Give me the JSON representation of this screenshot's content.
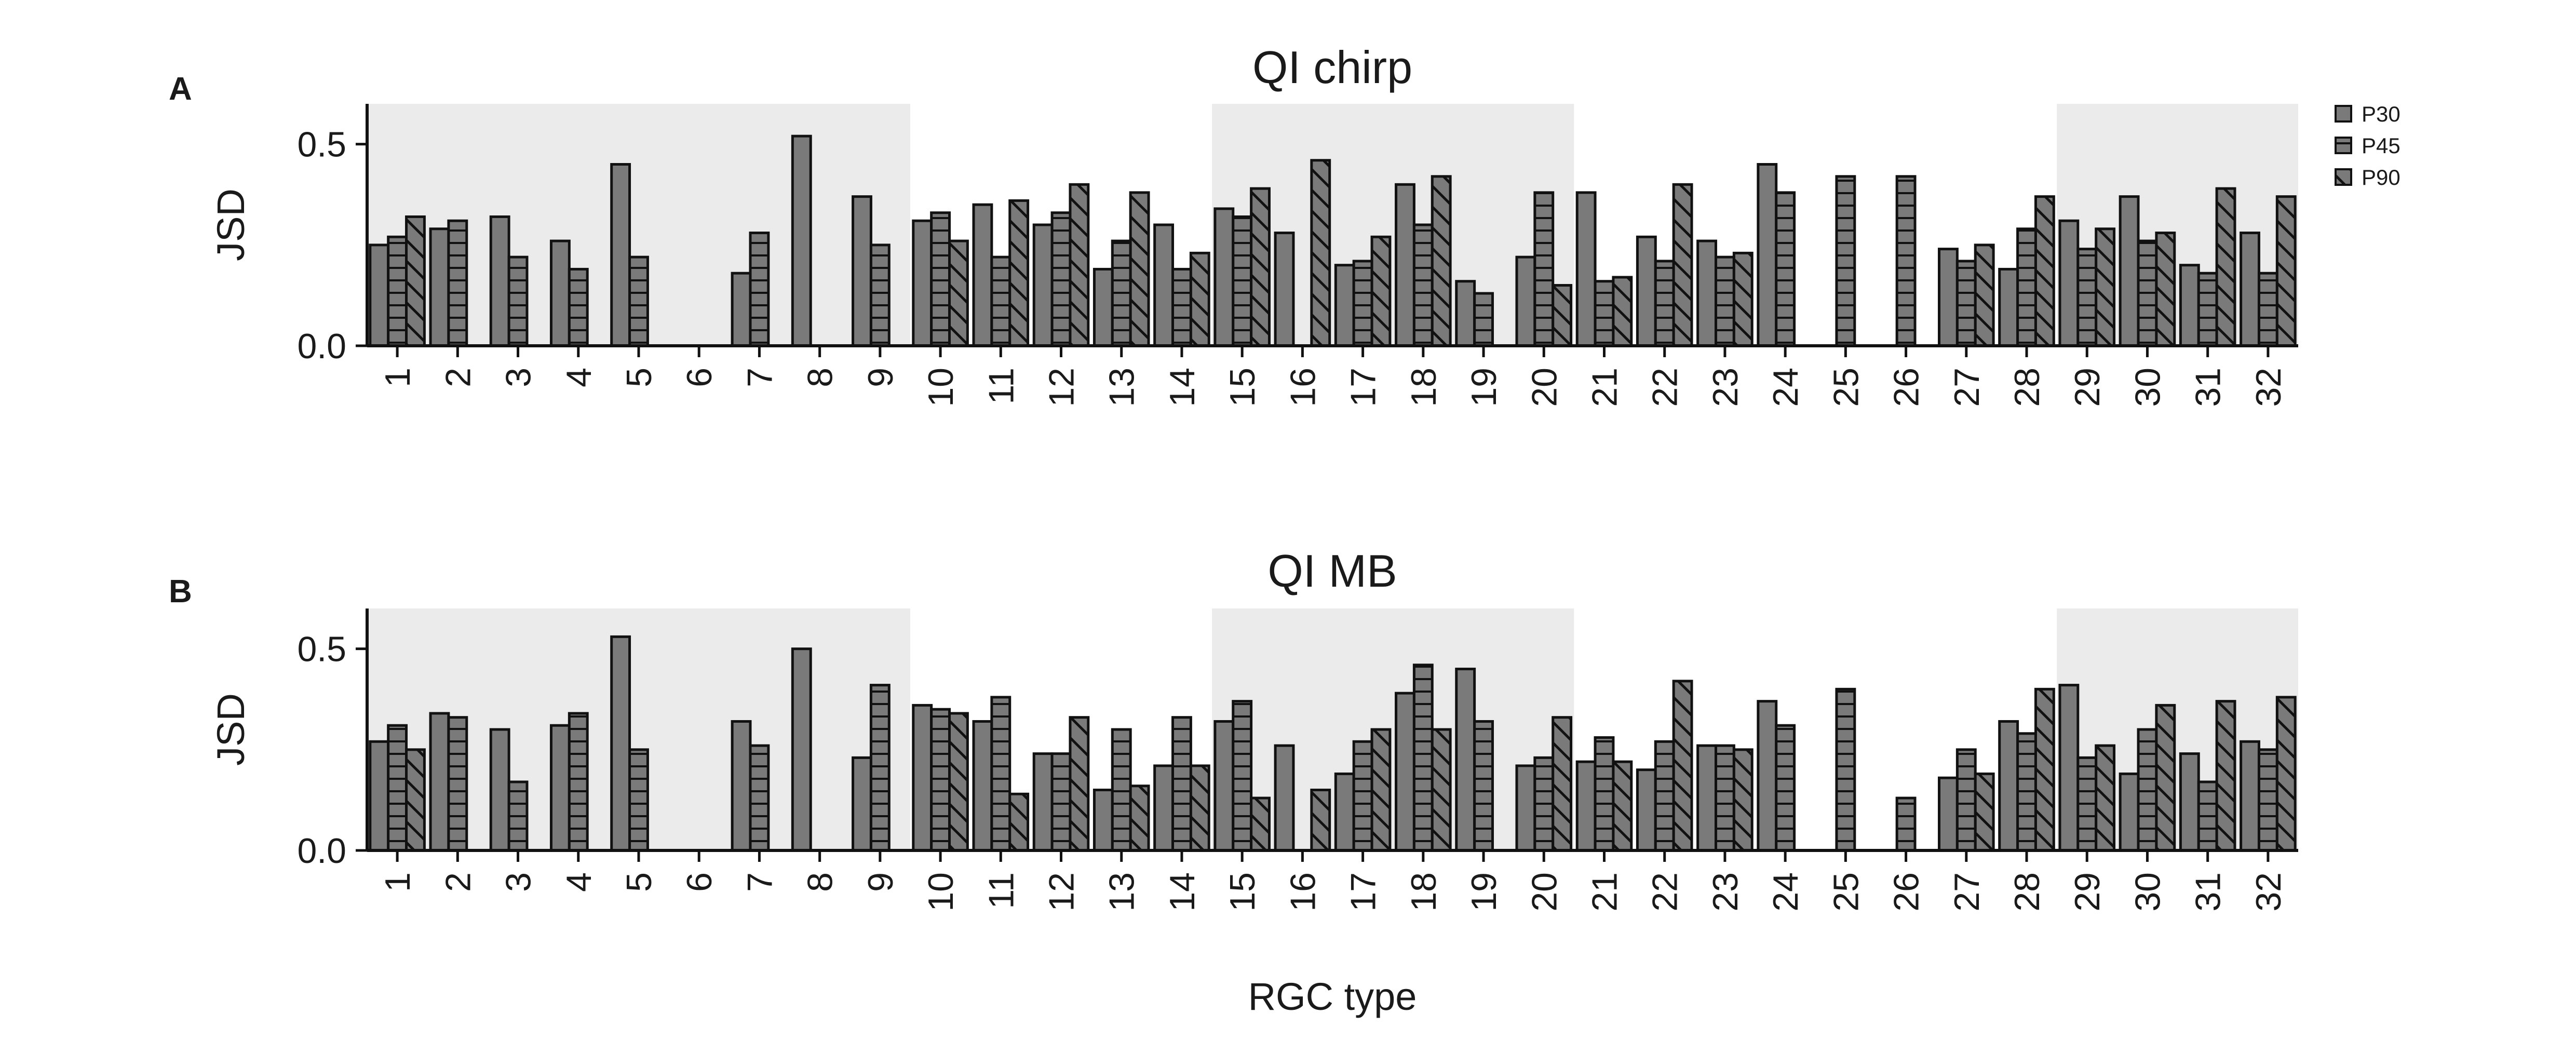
{
  "figure": {
    "xlabel": "RGC type"
  },
  "legend": {
    "entries": [
      {
        "name": "P30",
        "pattern": "none"
      },
      {
        "name": "P45",
        "pattern": "horizontal"
      },
      {
        "name": "P90",
        "pattern": "diagonal"
      }
    ],
    "placement": "top-right"
  },
  "colors": {
    "bar_fill": "#7a7a7a",
    "bar_edge": "#111111",
    "shade": "#ebebeb",
    "axis": "#111111"
  },
  "chart_data": [
    {
      "type": "bar",
      "panel_label": "A",
      "title": "QI chirp",
      "ylabel": "JSD",
      "xlabel": "RGC type",
      "ylim": [
        0,
        0.6
      ],
      "yticks": [
        0.0,
        0.5
      ],
      "ytick_labels": [
        "0.0",
        "0.5"
      ],
      "grid": false,
      "shaded_type_ranges": [
        [
          1,
          9
        ],
        [
          15,
          20
        ],
        [
          29,
          32
        ]
      ],
      "categories": [
        "1",
        "2",
        "3",
        "4",
        "5",
        "6",
        "7",
        "8",
        "9",
        "10",
        "11",
        "12",
        "13",
        "14",
        "15",
        "16",
        "17",
        "18",
        "19",
        "20",
        "21",
        "22",
        "23",
        "24",
        "25",
        "26",
        "27",
        "28",
        "29",
        "30",
        "31",
        "32"
      ],
      "series": [
        {
          "name": "P30",
          "values": [
            0.25,
            0.29,
            0.32,
            0.26,
            0.45,
            0,
            0.18,
            0.52,
            0.37,
            0.31,
            0.35,
            0.3,
            0.19,
            0.3,
            0.34,
            0.28,
            0.2,
            0.4,
            0.16,
            0.22,
            0.38,
            0.27,
            0.26,
            0.45,
            0,
            0,
            0.24,
            0.19,
            0.31,
            0.37,
            0.2,
            0.28
          ]
        },
        {
          "name": "P45",
          "values": [
            0.27,
            0.31,
            0.22,
            0.19,
            0.22,
            0,
            0.28,
            0,
            0.25,
            0.33,
            0.22,
            0.33,
            0.26,
            0.19,
            0.32,
            0,
            0.21,
            0.3,
            0.13,
            0.38,
            0.16,
            0.21,
            0.22,
            0.38,
            0.42,
            0.42,
            0.21,
            0.29,
            0.24,
            0.26,
            0.18,
            0.18
          ]
        },
        {
          "name": "P90",
          "values": [
            0.32,
            0,
            0,
            0,
            0,
            0,
            0,
            0,
            0,
            0.26,
            0.36,
            0.4,
            0.38,
            0.23,
            0.39,
            0.46,
            0.27,
            0.42,
            0,
            0.15,
            0.17,
            0.4,
            0.23,
            0,
            0,
            0,
            0.25,
            0.37,
            0.29,
            0.28,
            0.39,
            0.37
          ]
        }
      ]
    },
    {
      "type": "bar",
      "panel_label": "B",
      "title": "QI MB",
      "ylabel": "JSD",
      "xlabel": "RGC type",
      "ylim": [
        0,
        0.6
      ],
      "yticks": [
        0.0,
        0.5
      ],
      "ytick_labels": [
        "0.0",
        "0.5"
      ],
      "grid": false,
      "shaded_type_ranges": [
        [
          1,
          9
        ],
        [
          15,
          20
        ],
        [
          29,
          32
        ]
      ],
      "categories": [
        "1",
        "2",
        "3",
        "4",
        "5",
        "6",
        "7",
        "8",
        "9",
        "10",
        "11",
        "12",
        "13",
        "14",
        "15",
        "16",
        "17",
        "18",
        "19",
        "20",
        "21",
        "22",
        "23",
        "24",
        "25",
        "26",
        "27",
        "28",
        "29",
        "30",
        "31",
        "32"
      ],
      "series": [
        {
          "name": "P30",
          "values": [
            0.27,
            0.34,
            0.3,
            0.31,
            0.53,
            0,
            0.32,
            0.5,
            0.23,
            0.36,
            0.32,
            0.24,
            0.15,
            0.21,
            0.32,
            0.26,
            0.19,
            0.39,
            0.45,
            0.21,
            0.22,
            0.2,
            0.26,
            0.37,
            0,
            0,
            0.18,
            0.32,
            0.41,
            0.19,
            0.24,
            0.27
          ]
        },
        {
          "name": "P45",
          "values": [
            0.31,
            0.33,
            0.17,
            0.34,
            0.25,
            0,
            0.26,
            0,
            0.41,
            0.35,
            0.38,
            0.24,
            0.3,
            0.33,
            0.37,
            0,
            0.27,
            0.46,
            0.32,
            0.23,
            0.28,
            0.27,
            0.26,
            0.31,
            0.4,
            0.13,
            0.25,
            0.29,
            0.23,
            0.3,
            0.17,
            0.25
          ]
        },
        {
          "name": "P90",
          "values": [
            0.25,
            0,
            0,
            0,
            0,
            0,
            0,
            0,
            0,
            0.34,
            0.14,
            0.33,
            0.16,
            0.21,
            0.13,
            0.15,
            0.3,
            0.3,
            0,
            0.33,
            0.22,
            0.42,
            0.25,
            0,
            0,
            0,
            0.19,
            0.4,
            0.26,
            0.36,
            0.37,
            0.38
          ]
        }
      ]
    }
  ]
}
